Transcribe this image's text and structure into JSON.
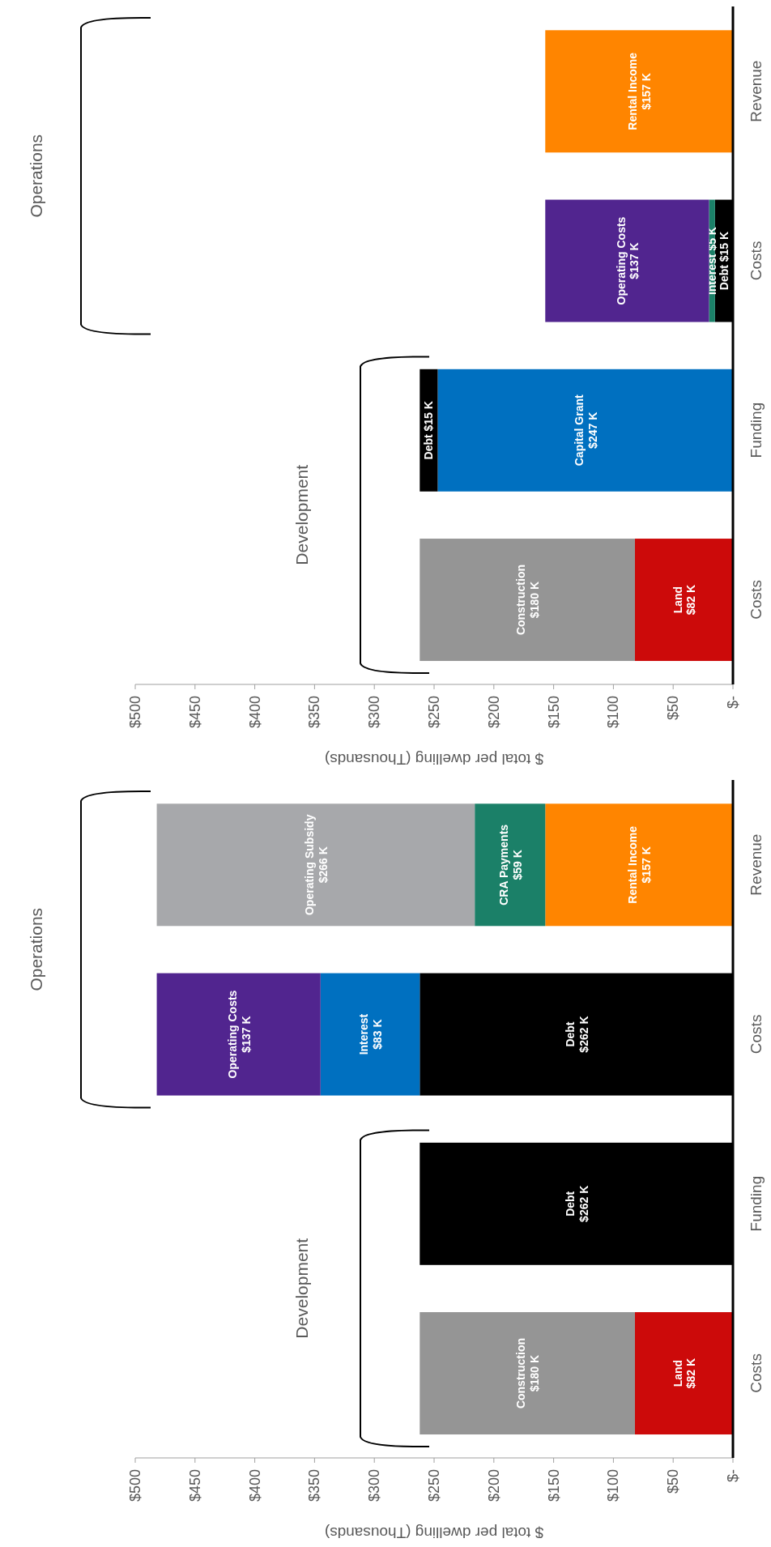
{
  "chart_data": [
    {
      "type": "bar",
      "stacked": true,
      "orientation": "horizontal",
      "categories": [
        "Revenue",
        "Costs",
        "Funding",
        "Costs"
      ],
      "xlabel": "$ total per dwelling (Thousands)",
      "xlim": [
        500,
        0
      ],
      "xticks": [
        {
          "value": 500,
          "label": "$500"
        },
        {
          "value": 450,
          "label": "$450"
        },
        {
          "value": 400,
          "label": "$400"
        },
        {
          "value": 350,
          "label": "$350"
        },
        {
          "value": 300,
          "label": "$300"
        },
        {
          "value": 250,
          "label": "$250"
        },
        {
          "value": 200,
          "label": "$200"
        },
        {
          "value": 150,
          "label": "$150"
        },
        {
          "value": 100,
          "label": "$100"
        },
        {
          "value": 50,
          "label": "$50"
        },
        {
          "value": 0,
          "label": "$-"
        }
      ],
      "annotations": [
        "Operations",
        "Development"
      ],
      "series": [
        {
          "name": "Land",
          "color": "#cc0a0a",
          "values": [
            null,
            null,
            null,
            82
          ],
          "value_labels": [
            null,
            null,
            null,
            "$82 K"
          ]
        },
        {
          "name": "Construction",
          "color": "#959595",
          "values": [
            null,
            null,
            null,
            180
          ],
          "value_labels": [
            null,
            null,
            null,
            "$180 K"
          ]
        },
        {
          "name": "Capital Grant",
          "color": "#0070c0",
          "values": [
            null,
            null,
            247,
            null
          ],
          "value_labels": [
            null,
            null,
            "$247 K",
            null
          ]
        },
        {
          "name": "Debt",
          "color": "#000000",
          "values": [
            null,
            15,
            15,
            null
          ],
          "value_labels": [
            null,
            "$15 K",
            "$15 K",
            null
          ]
        },
        {
          "name": "Interest",
          "color": "#1b8068",
          "values": [
            null,
            5,
            null,
            null
          ],
          "value_labels": [
            null,
            "$5 K",
            null,
            null
          ]
        },
        {
          "name": "Operating Costs",
          "color": "#51258f",
          "values": [
            null,
            137,
            null,
            null
          ],
          "value_labels": [
            null,
            "$137 K",
            null,
            null
          ]
        },
        {
          "name": "Rental Income",
          "color": "#ff8500",
          "values": [
            157,
            null,
            null,
            null
          ],
          "value_labels": [
            "$157 K",
            null,
            null,
            null
          ]
        }
      ]
    },
    {
      "type": "bar",
      "stacked": true,
      "orientation": "horizontal",
      "categories": [
        "Revenue",
        "Costs",
        "Funding",
        "Costs"
      ],
      "xlabel": "$ total per dwelling (Thousands)",
      "xlim": [
        500,
        0
      ],
      "xticks": [
        {
          "value": 500,
          "label": "$500"
        },
        {
          "value": 450,
          "label": "$450"
        },
        {
          "value": 400,
          "label": "$400"
        },
        {
          "value": 350,
          "label": "$350"
        },
        {
          "value": 300,
          "label": "$300"
        },
        {
          "value": 250,
          "label": "$250"
        },
        {
          "value": 200,
          "label": "$200"
        },
        {
          "value": 150,
          "label": "$150"
        },
        {
          "value": 100,
          "label": "$100"
        },
        {
          "value": 50,
          "label": "$50"
        },
        {
          "value": 0,
          "label": "$-"
        }
      ],
      "annotations": [
        "Operations",
        "Development"
      ],
      "series": [
        {
          "name": "Land",
          "color": "#cc0a0a",
          "values": [
            null,
            null,
            null,
            82
          ],
          "value_labels": [
            null,
            null,
            null,
            "$82 K"
          ]
        },
        {
          "name": "Construction",
          "color": "#959595",
          "values": [
            null,
            null,
            null,
            180
          ],
          "value_labels": [
            null,
            null,
            null,
            "$180 K"
          ]
        },
        {
          "name": "Debt",
          "color": "#000000",
          "values": [
            null,
            262,
            262,
            null
          ],
          "value_labels": [
            null,
            "$262 K",
            "$262 K",
            null
          ]
        },
        {
          "name": "Interest",
          "color": "#0070c0",
          "values": [
            null,
            83,
            null,
            null
          ],
          "value_labels": [
            null,
            "$83 K",
            null,
            null
          ]
        },
        {
          "name": "Operating Costs",
          "color": "#51258f",
          "values": [
            null,
            137,
            null,
            null
          ],
          "value_labels": [
            null,
            "$137 K",
            null,
            null
          ]
        },
        {
          "name": "Rental Income",
          "color": "#ff8500",
          "values": [
            157,
            null,
            null,
            null
          ],
          "value_labels": [
            "$157 K",
            null,
            null,
            null
          ]
        },
        {
          "name": "CRA Payments",
          "color": "#1b8068",
          "values": [
            59,
            null,
            null,
            null
          ],
          "value_labels": [
            "$59 K",
            null,
            null,
            null
          ]
        },
        {
          "name": "Operating Subsidy",
          "color": "#a7a8ab",
          "values": [
            266,
            null,
            null,
            null
          ],
          "value_labels": [
            "$266 K",
            null,
            null,
            null
          ]
        }
      ]
    }
  ]
}
